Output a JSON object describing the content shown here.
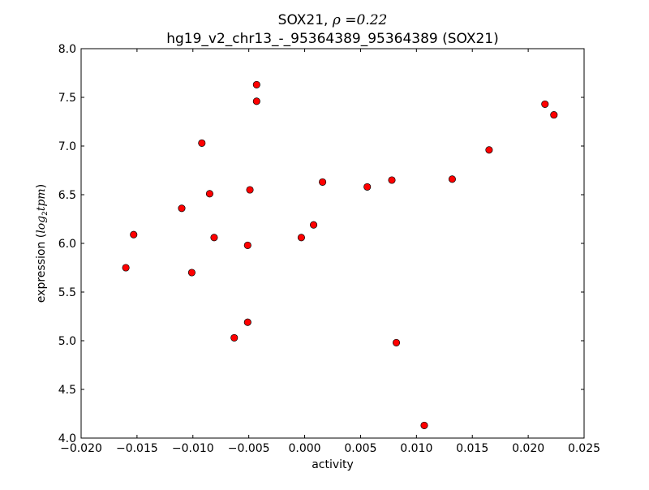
{
  "chart_data": {
    "type": "scatter",
    "title_line1_prefix": "SOX21, ",
    "title_rho": "ρ =0.22",
    "title_line2": "hg19_v2_chr13_-_95364389_95364389 (SOX21)",
    "xlabel": "activity",
    "ylabel_prefix": "expression (",
    "ylabel_math": "log",
    "ylabel_sub": "2",
    "ylabel_math2": "tpm",
    "ylabel_suffix": ")",
    "xlim": [
      -0.02,
      0.025
    ],
    "ylim": [
      4.0,
      8.0
    ],
    "xticks": [
      -0.02,
      -0.015,
      -0.01,
      -0.005,
      0.0,
      0.005,
      0.01,
      0.015,
      0.02,
      0.025
    ],
    "xtick_labels": [
      "−0.020",
      "−0.015",
      "−0.010",
      "−0.005",
      "0.000",
      "0.005",
      "0.010",
      "0.015",
      "0.020",
      "0.025"
    ],
    "yticks": [
      4.0,
      4.5,
      5.0,
      5.5,
      6.0,
      6.5,
      7.0,
      7.5,
      8.0
    ],
    "ytick_labels": [
      "4.0",
      "4.5",
      "5.0",
      "5.5",
      "6.0",
      "6.5",
      "7.0",
      "7.5",
      "8.0"
    ],
    "grid": false,
    "marker_color": "#ff0000",
    "points": [
      {
        "x": -0.016,
        "y": 5.75
      },
      {
        "x": -0.0153,
        "y": 6.09
      },
      {
        "x": -0.011,
        "y": 6.36
      },
      {
        "x": -0.0101,
        "y": 5.7
      },
      {
        "x": -0.0092,
        "y": 7.03
      },
      {
        "x": -0.0085,
        "y": 6.51
      },
      {
        "x": -0.0081,
        "y": 6.06
      },
      {
        "x": -0.0063,
        "y": 5.03
      },
      {
        "x": -0.0051,
        "y": 5.98
      },
      {
        "x": -0.0051,
        "y": 5.19
      },
      {
        "x": -0.0049,
        "y": 6.55
      },
      {
        "x": -0.0043,
        "y": 7.63
      },
      {
        "x": -0.0043,
        "y": 7.46
      },
      {
        "x": -0.0003,
        "y": 6.06
      },
      {
        "x": 0.0008,
        "y": 6.19
      },
      {
        "x": 0.0016,
        "y": 6.63
      },
      {
        "x": 0.0056,
        "y": 6.58
      },
      {
        "x": 0.0078,
        "y": 6.65
      },
      {
        "x": 0.0082,
        "y": 4.98
      },
      {
        "x": 0.0107,
        "y": 4.13
      },
      {
        "x": 0.0132,
        "y": 6.66
      },
      {
        "x": 0.0165,
        "y": 6.96
      },
      {
        "x": 0.0215,
        "y": 7.43
      },
      {
        "x": 0.0223,
        "y": 7.32
      }
    ]
  }
}
